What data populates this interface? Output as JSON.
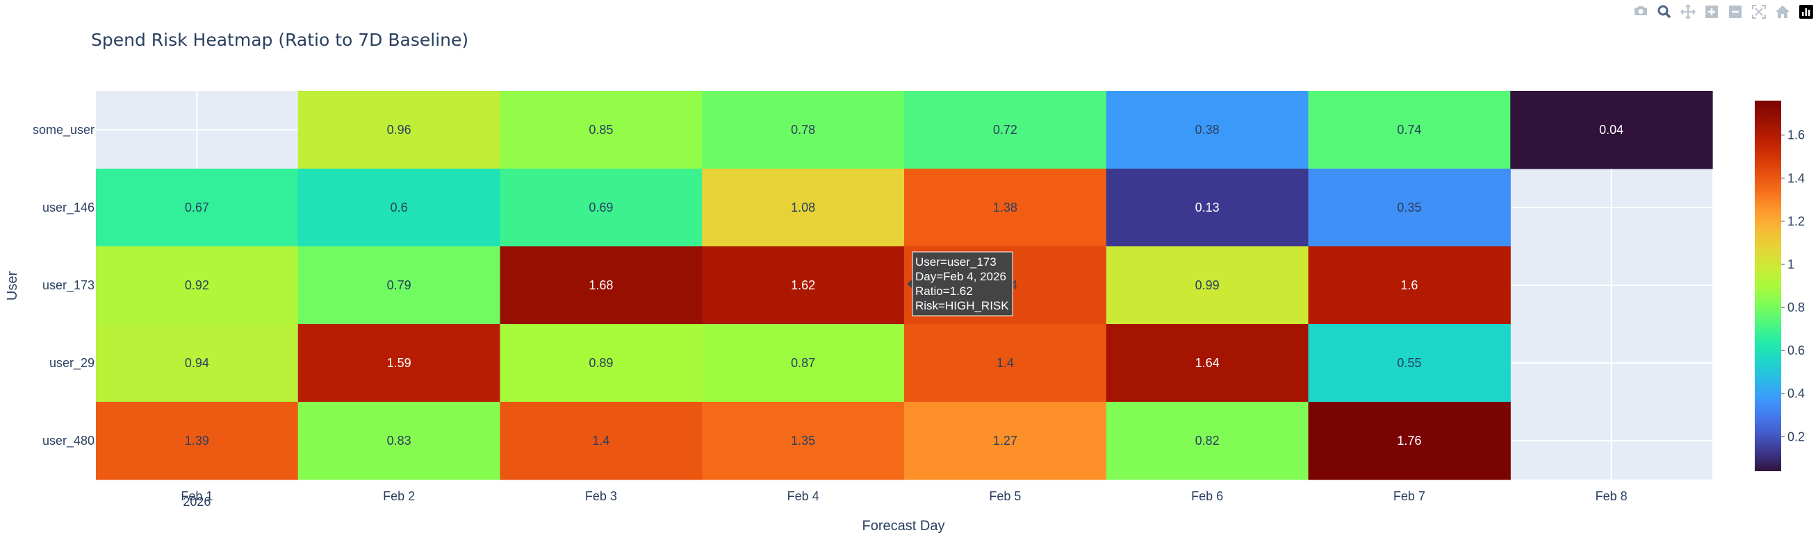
{
  "modebar": {
    "buttons": [
      {
        "name": "camera-icon"
      },
      {
        "name": "zoom-icon"
      },
      {
        "name": "pan-icon"
      },
      {
        "name": "zoom-in-icon"
      },
      {
        "name": "zoom-out-icon"
      },
      {
        "name": "autoscale-icon"
      },
      {
        "name": "reset-axes-icon"
      },
      {
        "name": "plotly-logo-icon"
      }
    ]
  },
  "chart_data": {
    "type": "heatmap",
    "title": "Spend Risk Heatmap (Ratio to 7D Baseline)",
    "xlabel": "Forecast Day",
    "ylabel": "User",
    "x": [
      "Feb 1",
      "Feb 2",
      "Feb 3",
      "Feb 4",
      "Feb 5",
      "Feb 6",
      "Feb 7",
      "Feb 8"
    ],
    "x_year_label": "2026",
    "y": [
      "some_user",
      "user_146",
      "user_173",
      "user_29",
      "user_480"
    ],
    "z": [
      [
        null,
        0.96,
        0.85,
        0.78,
        0.72,
        0.38,
        0.74,
        0.04
      ],
      [
        0.67,
        0.6,
        0.69,
        1.08,
        1.38,
        0.13,
        0.35,
        null
      ],
      [
        0.92,
        0.79,
        1.68,
        1.62,
        1.44,
        0.99,
        1.6,
        null
      ],
      [
        0.94,
        1.59,
        0.89,
        0.87,
        1.4,
        1.64,
        0.55,
        null
      ],
      [
        1.39,
        0.83,
        1.4,
        1.35,
        1.27,
        0.82,
        1.76,
        null
      ]
    ],
    "colorscale": "Turbo",
    "zmin": 0.04,
    "zmax": 1.76,
    "colorbar_ticks": [
      0.2,
      0.4,
      0.6,
      0.8,
      1,
      1.2,
      1.4,
      1.6
    ],
    "missing_color": "#e5ecf6",
    "hover": {
      "lines": [
        "User=user_173",
        "Day=Feb 4, 2026",
        "Ratio=1.62",
        "Risk=HIGH_RISK"
      ],
      "row": 2,
      "col": 3
    }
  }
}
